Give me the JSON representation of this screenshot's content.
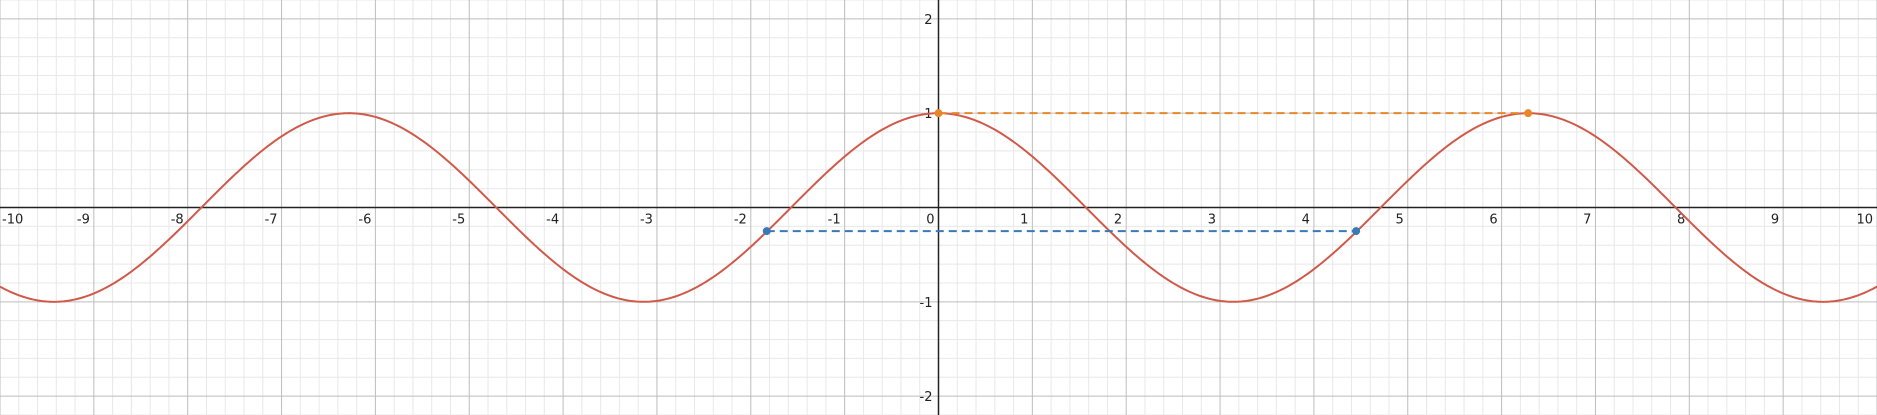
{
  "chart_data": {
    "type": "line",
    "xlim": [
      -10,
      10
    ],
    "ylim": [
      -2.2,
      2.2
    ],
    "grid": true,
    "minor_grid": true,
    "x_ticks": [
      -10,
      -9,
      -8,
      -7,
      -6,
      -5,
      -4,
      -3,
      -2,
      -1,
      0,
      1,
      2,
      3,
      4,
      5,
      6,
      7,
      8,
      9,
      10
    ],
    "y_ticks": [
      -2,
      -1,
      1,
      2
    ],
    "x_tick_labels": [
      "-10",
      "-9",
      "-8",
      "-7",
      "-6",
      "-5",
      "-4",
      "-3",
      "-2",
      "-1",
      "0",
      "1",
      "2",
      "3",
      "4",
      "5",
      "6",
      "7",
      "8",
      "9",
      "10"
    ],
    "y_tick_labels": [
      "-2",
      "-1",
      "1",
      "2"
    ],
    "series": [
      {
        "kind": "curve",
        "function": "cos(x)",
        "color": "#d05a4a",
        "x_range": [
          -10,
          10
        ]
      },
      {
        "kind": "dashed-segment",
        "color": "#e8862a",
        "points": [
          [
            0,
            1
          ],
          [
            6.283,
            1
          ]
        ]
      },
      {
        "kind": "dashed-segment",
        "color": "#3a79b8",
        "points": [
          [
            -1.83,
            -0.25
          ],
          [
            4.45,
            -0.25
          ]
        ]
      }
    ],
    "colors": {
      "axis": "#222222",
      "major_grid": "#bdbdbd",
      "minor_grid": "#e8e8e8"
    }
  }
}
